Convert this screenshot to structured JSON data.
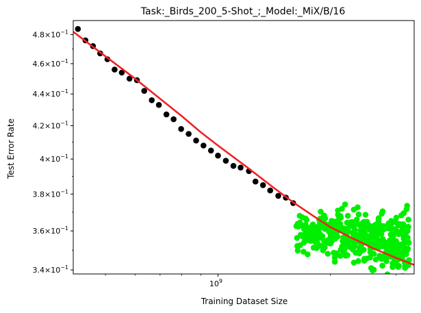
{
  "chart_data": {
    "type": "scatter",
    "title": "Task:_Birds_200_5-Shot_;_Model:_MiX/B/16",
    "xlabel": "Training Dataset Size",
    "ylabel": "Test Error Rate",
    "x_scale": "log",
    "y_scale": "log",
    "xlim": [
      410000000.0,
      3350000000.0
    ],
    "ylim": [
      0.338,
      0.49
    ],
    "grid": false,
    "x_major_ticks": [
      {
        "value": 1000000000.0,
        "base": "10",
        "exp": "9"
      }
    ],
    "x_minor_ticks": [
      500000000.0,
      600000000.0,
      700000000.0,
      800000000.0,
      900000000.0,
      2000000000.0,
      3000000000.0
    ],
    "y_ticks": [
      {
        "value": 0.34,
        "mant": "3.4",
        "exp": "−1"
      },
      {
        "value": 0.36,
        "mant": "3.6",
        "exp": "−1"
      },
      {
        "value": 0.38,
        "mant": "3.8",
        "exp": "−1"
      },
      {
        "value": 0.4,
        "mant": "4",
        "exp": "−1"
      },
      {
        "value": 0.42,
        "mant": "4.2",
        "exp": "−1"
      },
      {
        "value": 0.44,
        "mant": "4.4",
        "exp": "−1"
      },
      {
        "value": 0.46,
        "mant": "4.6",
        "exp": "−1"
      },
      {
        "value": 0.48,
        "mant": "4.8",
        "exp": "−1"
      }
    ],
    "times_symbol": "×",
    "series": [
      {
        "color": "#000000",
        "kind": "scatter",
        "points": [
          [
            422000000.0,
            0.484
          ],
          [
            442000000.0,
            0.476
          ],
          [
            463000000.0,
            0.472
          ],
          [
            484000000.0,
            0.467
          ],
          [
            506000000.0,
            0.463
          ],
          [
            529000000.0,
            0.456
          ],
          [
            553000000.0,
            0.454
          ],
          [
            580000000.0,
            0.45
          ],
          [
            607000000.0,
            0.449
          ],
          [
            635000000.0,
            0.442
          ],
          [
            665000000.0,
            0.436
          ],
          [
            695000000.0,
            0.433
          ],
          [
            728000000.0,
            0.427
          ],
          [
            761000000.0,
            0.424
          ],
          [
            797000000.0,
            0.418
          ],
          [
            835000000.0,
            0.415
          ],
          [
            874000000.0,
            0.411
          ],
          [
            915000000.0,
            0.408
          ],
          [
            958000000.0,
            0.405
          ],
          [
            1000000000.0,
            0.402
          ],
          [
            1050000000.0,
            0.399
          ],
          [
            1100000000.0,
            0.396
          ],
          [
            1150000000.0,
            0.395
          ],
          [
            1210000000.0,
            0.393
          ],
          [
            1260000000.0,
            0.387
          ],
          [
            1320000000.0,
            0.385
          ],
          [
            1380000000.0,
            0.382
          ],
          [
            1450000000.0,
            0.379
          ],
          [
            1520000000.0,
            0.378
          ],
          [
            1590000000.0,
            0.375
          ]
        ]
      },
      {
        "color": "#00ee00",
        "kind": "scatter",
        "cluster": {
          "n": 420,
          "x_range": [
            1620000000.0,
            3250000000.0
          ],
          "y_center": 0.36,
          "y_trend_end": 0.354,
          "y_spread": 0.0085
        }
      },
      {
        "color": "#ee2222",
        "kind": "line",
        "fit": "0.35 * x^(-0.045) + 0.155 - blended (smooth curve)",
        "points": [
          [
            410000000.0,
            0.482
          ],
          [
            500000000.0,
            0.465
          ],
          [
            600000000.0,
            0.45
          ],
          [
            700000000.0,
            0.437
          ],
          [
            800000000.0,
            0.426
          ],
          [
            900000000.0,
            0.416
          ],
          [
            1000000000.0,
            0.408
          ],
          [
            1200000000.0,
            0.395
          ],
          [
            1400000000.0,
            0.384
          ],
          [
            1600000000.0,
            0.375
          ],
          [
            1800000000.0,
            0.368
          ],
          [
            2000000000.0,
            0.362
          ],
          [
            2300000000.0,
            0.356
          ],
          [
            2600000000.0,
            0.351
          ],
          [
            3000000000.0,
            0.346
          ],
          [
            3350000000.0,
            0.3425
          ]
        ]
      }
    ]
  }
}
